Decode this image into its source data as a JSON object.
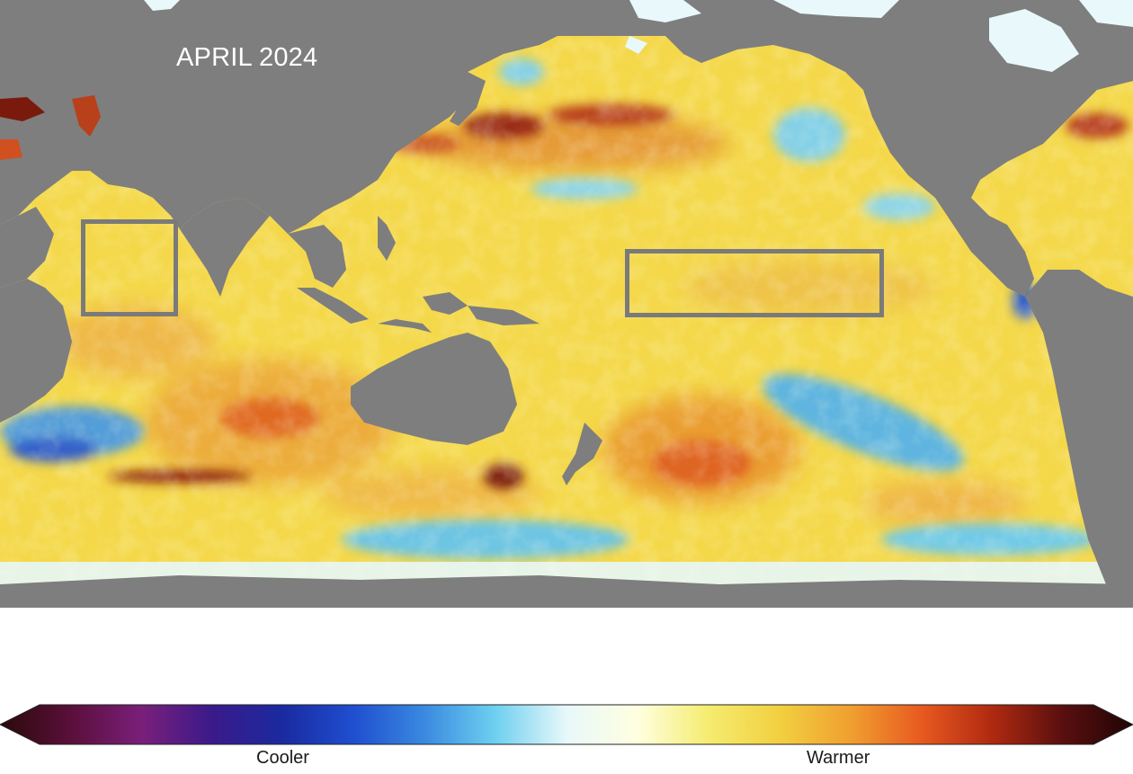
{
  "map": {
    "title": "APRIL 2024",
    "highlighted_regions": [
      "indian-ocean-box",
      "nino-region-box"
    ]
  },
  "legend": {
    "cooler_label": "Cooler",
    "warmer_label": "Warmer",
    "colors": [
      "#2a0a0a",
      "#5a0f3a",
      "#7a1f7a",
      "#3a1a8a",
      "#1a2aa0",
      "#1f4fd0",
      "#3a8ae0",
      "#6fd0f0",
      "#e8f8fa",
      "#ffffe0",
      "#f5ec70",
      "#f2d040",
      "#f0a030",
      "#e85a20",
      "#b02a10",
      "#5a0f0f",
      "#200505"
    ]
  },
  "colors": {
    "land": "#7e7e7e",
    "warm_yellow": "#f4dc4a",
    "warm_orange": "#eca23a",
    "hot_red": "#c8401a",
    "cool_blue": "#5ab8e6",
    "ice": "#e6f7fa"
  }
}
